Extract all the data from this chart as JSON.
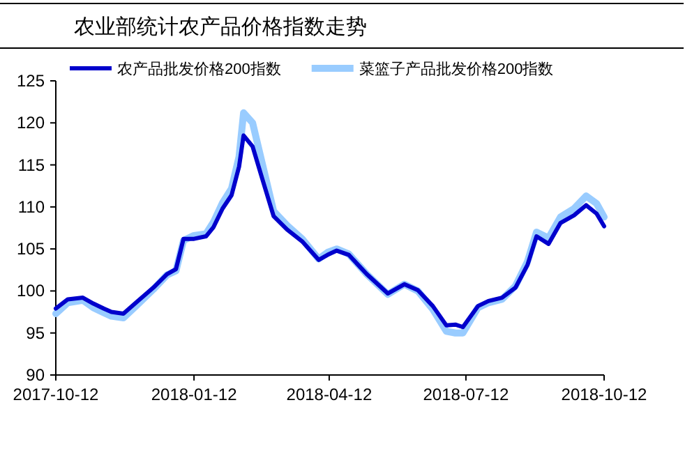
{
  "chart_data": {
    "type": "line",
    "title": "农业部统计农产品价格指数走势",
    "x": [
      "2017-10-12",
      "2017-10-20",
      "2017-10-30",
      "2017-11-06",
      "2017-11-13",
      "2017-11-18",
      "2017-11-26",
      "2017-12-05",
      "2017-12-16",
      "2017-12-25",
      "2017-12-31",
      "2018-01-05",
      "2018-01-12",
      "2018-01-20",
      "2018-01-25",
      "2018-01-31",
      "2018-02-06",
      "2018-02-11",
      "2018-02-14",
      "2018-02-20",
      "2018-02-26",
      "2018-03-06",
      "2018-03-15",
      "2018-03-25",
      "2018-04-05",
      "2018-04-11",
      "2018-04-17",
      "2018-04-25",
      "2018-05-07",
      "2018-05-21",
      "2018-06-01",
      "2018-06-10",
      "2018-06-20",
      "2018-06-29",
      "2018-07-05",
      "2018-07-10",
      "2018-07-20",
      "2018-07-27",
      "2018-08-05",
      "2018-08-14",
      "2018-08-22",
      "2018-08-28",
      "2018-09-05",
      "2018-09-13",
      "2018-09-22",
      "2018-09-30",
      "2018-10-07",
      "2018-10-12"
    ],
    "series": [
      {
        "name": "农产品批发价格200指数",
        "color": "#0000cc",
        "values": [
          97.9,
          99.0,
          99.2,
          98.5,
          97.9,
          97.5,
          97.3,
          98.7,
          100.4,
          102.0,
          102.6,
          106.2,
          106.2,
          106.5,
          107.6,
          109.8,
          111.4,
          114.8,
          118.5,
          117.2,
          113.6,
          108.9,
          107.3,
          105.9,
          103.7,
          104.3,
          104.8,
          104.3,
          102.0,
          99.7,
          100.8,
          100.1,
          98.2,
          95.9,
          96.0,
          95.7,
          98.2,
          98.8,
          99.2,
          100.4,
          103.1,
          106.5,
          105.6,
          108.1,
          109.0,
          110.2,
          109.2,
          107.7
        ]
      },
      {
        "name": "菜篮子产品批发价格200指数",
        "color": "#99ccff",
        "values": [
          97.3,
          98.6,
          98.9,
          98.0,
          97.4,
          97.0,
          96.8,
          98.3,
          100.2,
          101.9,
          102.4,
          106.0,
          106.6,
          106.8,
          108.2,
          110.5,
          112.2,
          116.0,
          121.2,
          120.0,
          115.5,
          109.5,
          107.8,
          106.2,
          103.8,
          104.6,
          105.0,
          104.4,
          102.0,
          99.6,
          100.8,
          100.0,
          97.8,
          95.2,
          95.0,
          95.0,
          98.0,
          98.6,
          99.0,
          100.6,
          103.5,
          107.0,
          106.3,
          108.8,
          109.8,
          111.3,
          110.4,
          108.8
        ]
      }
    ],
    "xlim": [
      "2017-10-12",
      "2018-10-12"
    ],
    "xticks": [
      "2017-10-12",
      "2018-01-12",
      "2018-04-12",
      "2018-07-12",
      "2018-10-12"
    ],
    "ylim": [
      90,
      125
    ],
    "yticks": [
      90,
      95,
      100,
      105,
      110,
      115,
      120,
      125
    ],
    "legend": "top",
    "grid": false,
    "marker": "none",
    "line_style": "solid"
  }
}
